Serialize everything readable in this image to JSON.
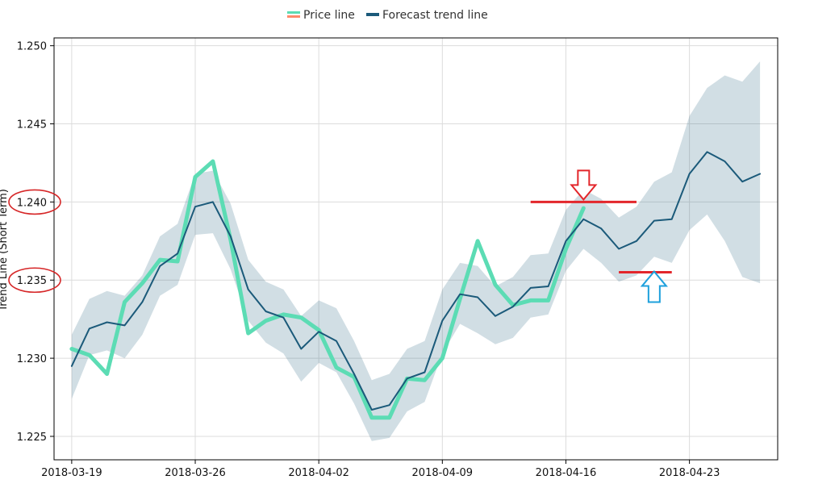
{
  "legend": {
    "items": [
      {
        "label": "Price line",
        "color": "#ff8a6a",
        "accent": "#5cdcb4"
      },
      {
        "label": "Forecast trend line",
        "color": "#1b5a7a"
      }
    ]
  },
  "chart_data": {
    "type": "line",
    "ylabel": "Trend Line (Short Term)",
    "ylim": [
      1.2235,
      1.2505
    ],
    "yticks": [
      1.225,
      1.23,
      1.235,
      1.24,
      1.245,
      1.25
    ],
    "ytick_labels": [
      "1.225",
      "1.230",
      "1.235",
      "1.240",
      "1.245",
      "1.250"
    ],
    "xlim": [
      "2018-03-18",
      "2018-04-28"
    ],
    "xticks": [
      "2018-03-19",
      "2018-03-26",
      "2018-04-02",
      "2018-04-09",
      "2018-04-16",
      "2018-04-23"
    ],
    "grid": true,
    "legend_position": "top-center",
    "series": [
      {
        "name": "Price line",
        "color": "#5cdcb4",
        "points": [
          [
            "2018-03-19",
            1.2306
          ],
          [
            "2018-03-20",
            1.2302
          ],
          [
            "2018-03-21",
            1.229
          ],
          [
            "2018-03-22",
            1.2336
          ],
          [
            "2018-03-23",
            1.2348
          ],
          [
            "2018-03-24",
            1.2363
          ],
          [
            "2018-03-25",
            1.2362
          ],
          [
            "2018-03-26",
            1.2416
          ],
          [
            "2018-03-27",
            1.2426
          ],
          [
            "2018-03-28",
            1.2376
          ],
          [
            "2018-03-29",
            1.2316
          ],
          [
            "2018-03-30",
            1.2324
          ],
          [
            "2018-03-31",
            1.2328
          ],
          [
            "2018-04-01",
            1.2326
          ],
          [
            "2018-04-02",
            1.2318
          ],
          [
            "2018-04-03",
            1.2294
          ],
          [
            "2018-04-04",
            1.2288
          ],
          [
            "2018-04-05",
            1.2262
          ],
          [
            "2018-04-06",
            1.2262
          ],
          [
            "2018-04-07",
            1.2287
          ],
          [
            "2018-04-08",
            1.2286
          ],
          [
            "2018-04-09",
            1.23
          ],
          [
            "2018-04-10",
            1.2338
          ],
          [
            "2018-04-11",
            1.2375
          ],
          [
            "2018-04-12",
            1.2347
          ],
          [
            "2018-04-13",
            1.2334
          ],
          [
            "2018-04-14",
            1.2337
          ],
          [
            "2018-04-15",
            1.2337
          ],
          [
            "2018-04-16",
            1.237
          ],
          [
            "2018-04-17",
            1.2396
          ]
        ]
      },
      {
        "name": "Forecast trend line",
        "color": "#1b5a7a",
        "points": [
          [
            "2018-03-19",
            1.2295
          ],
          [
            "2018-03-20",
            1.2319
          ],
          [
            "2018-03-21",
            1.2323
          ],
          [
            "2018-03-22",
            1.2321
          ],
          [
            "2018-03-23",
            1.2336
          ],
          [
            "2018-03-24",
            1.2359
          ],
          [
            "2018-03-25",
            1.2367
          ],
          [
            "2018-03-26",
            1.2397
          ],
          [
            "2018-03-27",
            1.24
          ],
          [
            "2018-03-28",
            1.2378
          ],
          [
            "2018-03-29",
            1.2344
          ],
          [
            "2018-03-30",
            1.233
          ],
          [
            "2018-03-31",
            1.2326
          ],
          [
            "2018-04-01",
            1.2306
          ],
          [
            "2018-04-02",
            1.2317
          ],
          [
            "2018-04-03",
            1.2311
          ],
          [
            "2018-04-04",
            1.229
          ],
          [
            "2018-04-05",
            1.2267
          ],
          [
            "2018-04-06",
            1.227
          ],
          [
            "2018-04-07",
            1.2287
          ],
          [
            "2018-04-08",
            1.2291
          ],
          [
            "2018-04-09",
            1.2324
          ],
          [
            "2018-04-10",
            1.2341
          ],
          [
            "2018-04-11",
            1.2339
          ],
          [
            "2018-04-12",
            1.2327
          ],
          [
            "2018-04-13",
            1.2333
          ],
          [
            "2018-04-14",
            1.2345
          ],
          [
            "2018-04-15",
            1.2346
          ],
          [
            "2018-04-16",
            1.2375
          ],
          [
            "2018-04-17",
            1.2389
          ],
          [
            "2018-04-18",
            1.2383
          ],
          [
            "2018-04-19",
            1.237
          ],
          [
            "2018-04-20",
            1.2375
          ],
          [
            "2018-04-21",
            1.2388
          ],
          [
            "2018-04-22",
            1.2389
          ],
          [
            "2018-04-23",
            1.2418
          ],
          [
            "2018-04-24",
            1.2432
          ],
          [
            "2018-04-25",
            1.2426
          ],
          [
            "2018-04-26",
            1.2413
          ],
          [
            "2018-04-27",
            1.2418
          ]
        ]
      }
    ],
    "band": {
      "color": "#1b5a7a",
      "opacity": 0.2,
      "lower": [
        1.2274,
        1.2302,
        1.2305,
        1.23,
        1.2315,
        1.234,
        1.2347,
        1.2379,
        1.238,
        1.2357,
        1.2324,
        1.231,
        1.2303,
        1.2285,
        1.2297,
        1.2291,
        1.2271,
        1.2247,
        1.2249,
        1.2266,
        1.2272,
        1.2303,
        1.2322,
        1.2316,
        1.2309,
        1.2313,
        1.2326,
        1.2328,
        1.2356,
        1.237,
        1.2361,
        1.2349,
        1.2353,
        1.2365,
        1.2361,
        1.2382,
        1.2392,
        1.2375,
        1.2352,
        1.2348
      ],
      "upper": [
        1.2315,
        1.2338,
        1.2343,
        1.234,
        1.2353,
        1.2378,
        1.2386,
        1.2418,
        1.242,
        1.2399,
        1.2363,
        1.2349,
        1.2344,
        1.2327,
        1.2337,
        1.2332,
        1.2311,
        1.2286,
        1.229,
        1.2306,
        1.2311,
        1.2344,
        1.2361,
        1.2359,
        1.2346,
        1.2352,
        1.2366,
        1.2367,
        1.2395,
        1.2408,
        1.2402,
        1.239,
        1.2397,
        1.2413,
        1.2419,
        1.2455,
        1.2473,
        1.2481,
        1.2477,
        1.249
      ]
    },
    "annotations": {
      "ellipse_color": "#d62728",
      "highlighted_ticks": [
        1.24,
        1.235
      ],
      "resistance_line": {
        "x_start": "2018-04-14",
        "x_end": "2018-04-20",
        "y": 1.24,
        "color": "#e3262b"
      },
      "support_line": {
        "x_start": "2018-04-19",
        "x_end": "2018-04-22",
        "y": 1.2355,
        "color": "#e3262b"
      },
      "down_arrow": {
        "x": "2018-04-17",
        "color": "#e3262b"
      },
      "up_arrow": {
        "x": "2018-04-21",
        "color": "#1ea0dc"
      }
    }
  }
}
